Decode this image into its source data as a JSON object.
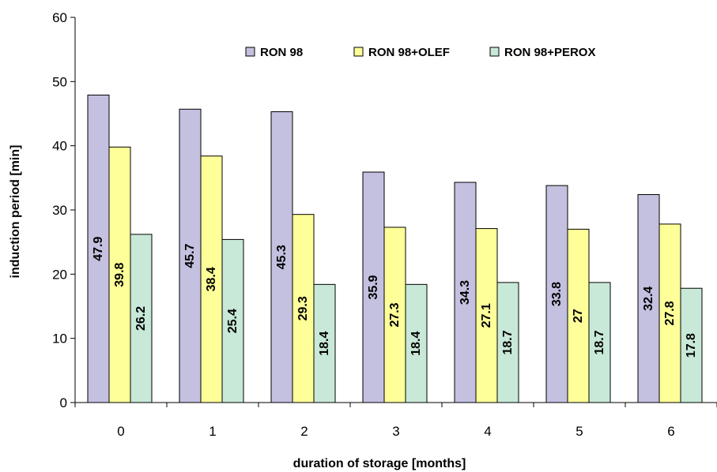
{
  "chart_data": {
    "type": "bar",
    "categories": [
      "0",
      "1",
      "2",
      "3",
      "4",
      "5",
      "6"
    ],
    "series": [
      {
        "name": "RON 98",
        "values": [
          47.9,
          45.7,
          45.3,
          35.9,
          34.3,
          33.8,
          32.4
        ],
        "labels": [
          "47.9",
          "45.7",
          "45.3",
          "35.9",
          "34.3",
          "33.8",
          "32.4"
        ],
        "color": "#c4c0e0"
      },
      {
        "name": "RON 98+OLEF",
        "values": [
          39.8,
          38.4,
          29.3,
          27.3,
          27.1,
          27,
          27.8
        ],
        "labels": [
          "39.8",
          "38.4",
          "29.3",
          "27.3",
          "27.1",
          "27",
          "27.8"
        ],
        "color": "#ffff99"
      },
      {
        "name": "RON 98+PEROX",
        "values": [
          26.2,
          25.4,
          18.4,
          18.4,
          18.7,
          18.7,
          17.8
        ],
        "labels": [
          "26.2",
          "25.4",
          "18.4",
          "18.4",
          "18.7",
          "18.7",
          "17.8"
        ],
        "color": "#c8e8d8"
      }
    ],
    "xlabel": "duration of storage [months]",
    "ylabel": "induction period [min]",
    "ylim": [
      0,
      60
    ],
    "yticks": [
      "0",
      "10",
      "20",
      "30",
      "40",
      "50",
      "60"
    ],
    "grid": false,
    "legend_position": "top"
  }
}
